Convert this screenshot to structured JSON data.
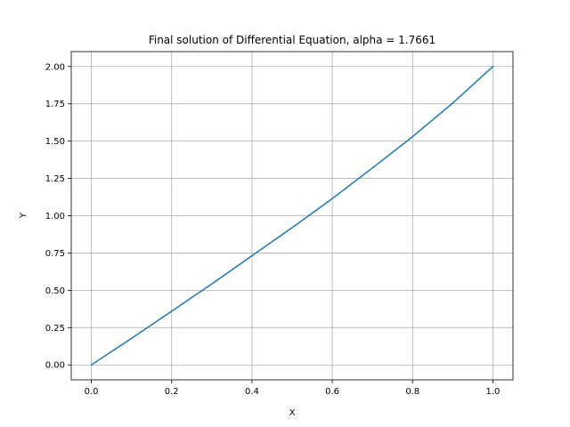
{
  "chart_data": {
    "type": "line",
    "title": "Final solution of Differential Equation, alpha = 1.7661",
    "xlabel": "X",
    "ylabel": "Y",
    "xlim": [
      -0.05,
      1.05
    ],
    "ylim": [
      -0.1,
      2.1
    ],
    "grid": true,
    "x_ticks": [
      0.0,
      0.2,
      0.4,
      0.6,
      0.8,
      1.0
    ],
    "x_tick_labels": [
      "0.0",
      "0.2",
      "0.4",
      "0.6",
      "0.8",
      "1.0"
    ],
    "y_ticks": [
      0.0,
      0.25,
      0.5,
      0.75,
      1.0,
      1.25,
      1.5,
      1.75,
      2.0
    ],
    "y_tick_labels": [
      "0.00",
      "0.25",
      "0.50",
      "0.75",
      "1.00",
      "1.25",
      "1.50",
      "1.75",
      "2.00"
    ],
    "series": [
      {
        "color": "#1f77b4",
        "x": [
          0.0,
          0.1,
          0.2,
          0.3,
          0.4,
          0.5,
          0.6,
          0.7,
          0.8,
          0.9,
          1.0
        ],
        "y": [
          0.0,
          0.178,
          0.36,
          0.543,
          0.732,
          0.92,
          1.115,
          1.32,
          1.53,
          1.755,
          2.0
        ]
      }
    ]
  }
}
